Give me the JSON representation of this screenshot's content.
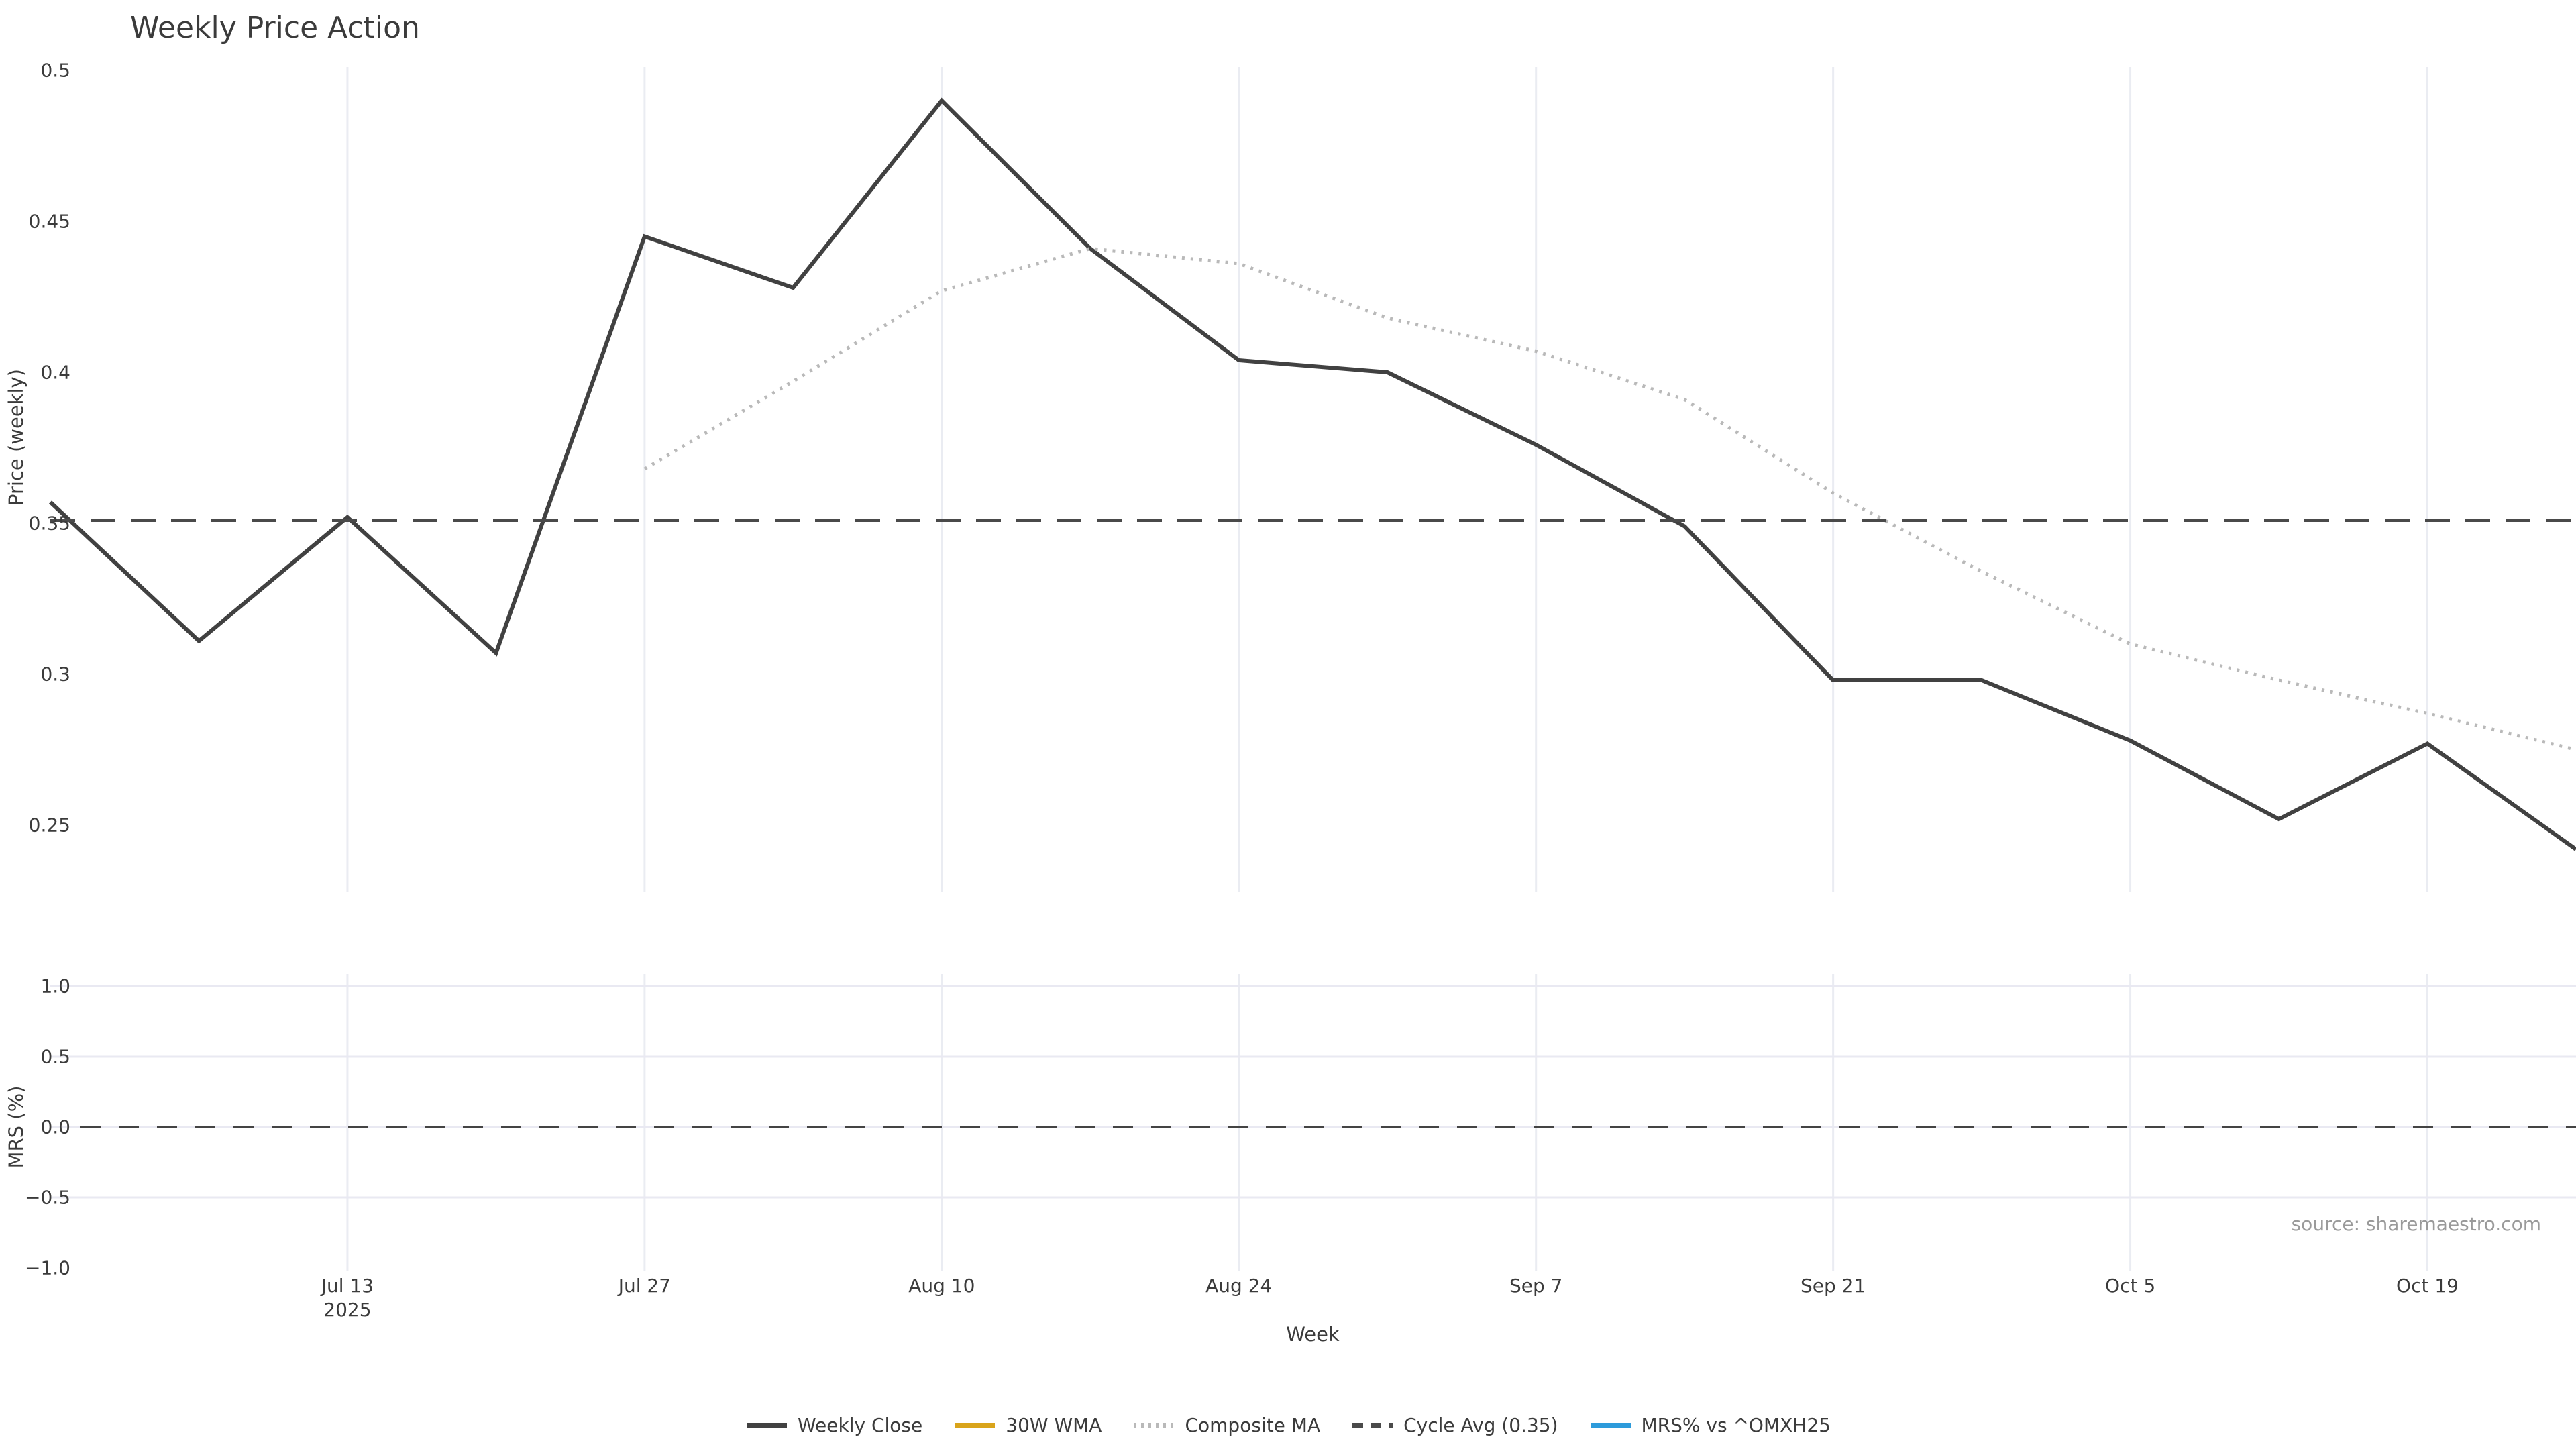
{
  "title": "Weekly Price Action",
  "source": "source: sharemaestro.com",
  "x_axis": {
    "label": "Week",
    "tick_labels": [
      {
        "index": 2,
        "label": "Jul 13",
        "sub": "2025"
      },
      {
        "index": 4,
        "label": "Jul 27",
        "sub": ""
      },
      {
        "index": 6,
        "label": "Aug 10",
        "sub": ""
      },
      {
        "index": 8,
        "label": "Aug 24",
        "sub": ""
      },
      {
        "index": 10,
        "label": "Sep 7",
        "sub": ""
      },
      {
        "index": 12,
        "label": "Sep 21",
        "sub": ""
      },
      {
        "index": 14,
        "label": "Oct 5",
        "sub": ""
      },
      {
        "index": 16,
        "label": "Oct 19",
        "sub": ""
      }
    ]
  },
  "price_panel": {
    "ylabel": "Price (weekly)",
    "ytick_labels": [
      "0.5",
      "0.45",
      "0.4",
      "0.35",
      "0.3",
      "0.25"
    ],
    "ytick_values": [
      0.5,
      0.45,
      0.4,
      0.35,
      0.3,
      0.25
    ]
  },
  "mrs_panel": {
    "ylabel": "MRS (%)",
    "ytick_labels": [
      "1.0",
      "0.5",
      "0.0",
      "−0.5",
      "−1.0"
    ],
    "ytick_values": [
      1.0,
      0.5,
      0.0,
      -0.5,
      -1.0
    ],
    "gridline_values": [
      1.0,
      0.5,
      0.0,
      -0.5
    ]
  },
  "legend": [
    {
      "label": "Weekly Close",
      "color": "#414141",
      "style": "solid"
    },
    {
      "label": "30W WMA",
      "color": "#d9a41b",
      "style": "solid"
    },
    {
      "label": "Composite MA",
      "color": "#b9b9b9",
      "style": "dotted"
    },
    {
      "label": "Cycle Avg (0.35)",
      "color": "#4a4a4a",
      "style": "dashed"
    },
    {
      "label": "MRS% vs ^OMXH25",
      "color": "#2d9bdb",
      "style": "solid"
    }
  ],
  "colors": {
    "weekly_close": "#414141",
    "wma_30w": "#d9a41b",
    "composite_ma": "#b9b9b9",
    "cycle_avg": "#4a4a4a",
    "mrs_line": "#2d9bdb",
    "grid_vertical": "#eaecf2",
    "grid_horizontal": "#e9e9f2",
    "zero_dash": "#444444",
    "text": "#3b3b3b",
    "muted_text": "#9a9a9a",
    "background": "#ffffff"
  },
  "chart_data": [
    {
      "type": "line",
      "panel": "price",
      "title": "Weekly Price Action",
      "xlabel": "Week",
      "ylabel": "Price (weekly)",
      "x": [
        "2025-06-29",
        "2025-07-06",
        "2025-07-13",
        "2025-07-20",
        "2025-07-27",
        "2025-08-03",
        "2025-08-10",
        "2025-08-17",
        "2025-08-24",
        "2025-08-31",
        "2025-09-07",
        "2025-09-14",
        "2025-09-21",
        "2025-09-28",
        "2025-10-05",
        "2025-10-12",
        "2025-10-19",
        "2025-10-26"
      ],
      "ylim": [
        0.228,
        0.507
      ],
      "grid": "vertical-only",
      "legend_position": "bottom-center",
      "series": [
        {
          "name": "Weekly Close",
          "style": "solid",
          "start_index": 0,
          "values": [
            0.357,
            0.311,
            0.352,
            0.307,
            0.445,
            0.428,
            0.49,
            0.441,
            0.404,
            0.4,
            0.376,
            0.349,
            0.298,
            0.298,
            0.278,
            0.252,
            0.277,
            0.242
          ]
        },
        {
          "name": "30W WMA",
          "style": "solid",
          "start_index": 0,
          "values": [],
          "note": "in legend but no data visible in plotted range"
        },
        {
          "name": "Composite MA",
          "style": "dotted",
          "start_index": 4,
          "values": [
            0.368,
            0.397,
            0.427,
            0.441,
            0.436,
            0.418,
            0.407,
            0.391,
            0.36,
            0.334,
            0.31,
            0.298,
            0.287,
            0.275
          ]
        },
        {
          "name": "Cycle Avg (0.35)",
          "style": "dashed",
          "constant": 0.351
        }
      ]
    },
    {
      "type": "line",
      "panel": "mrs",
      "ylabel": "MRS (%)",
      "ylim": [
        -1.1,
        1.1
      ],
      "grid": "both",
      "series": [
        {
          "name": "MRS% vs ^OMXH25",
          "style": "solid",
          "values": [],
          "note": "in legend but no data visible in plotted range"
        },
        {
          "name": "zero-reference",
          "style": "dashed",
          "constant": 0.0
        }
      ]
    }
  ]
}
